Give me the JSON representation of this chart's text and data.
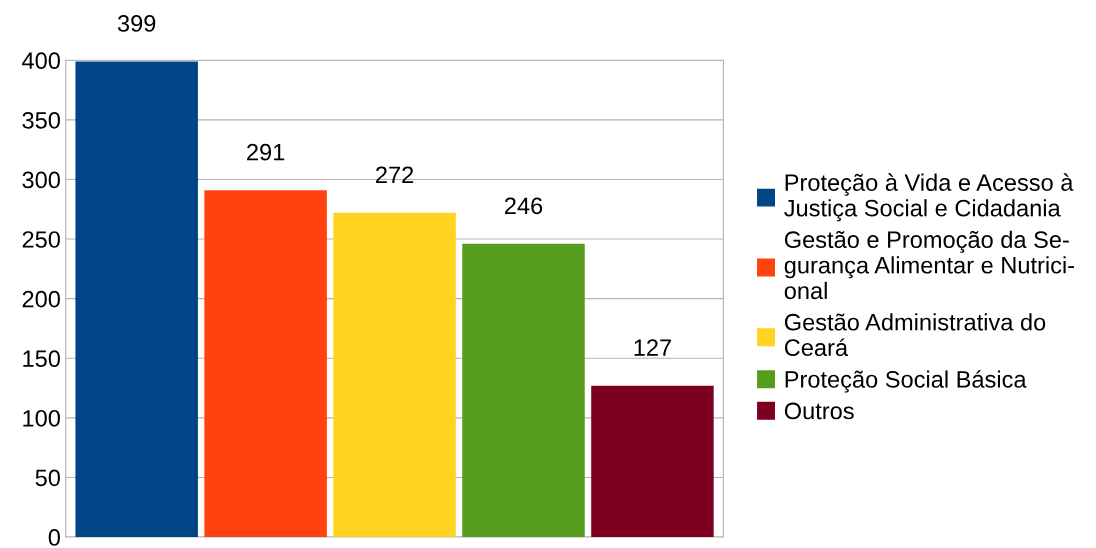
{
  "chart_data": {
    "type": "bar",
    "categories": [
      null,
      null,
      null,
      null,
      null
    ],
    "series": [
      {
        "name": "Proteção à Vida e Acesso à\nJustiça Social e Cidadania",
        "color": "#004586",
        "values": [
          399,
          null,
          null,
          null,
          null
        ]
      },
      {
        "name": "Gestão e Promoção da Se-\ngurança Alimentar e Nutrici-\nonal",
        "color": "#ff420e",
        "values": [
          null,
          291,
          null,
          null,
          null
        ]
      },
      {
        "name": "Gestão Administrativa do\nCeará",
        "color": "#ffd320",
        "values": [
          null,
          null,
          272,
          null,
          null
        ]
      },
      {
        "name": "Proteção Social Básica",
        "color": "#579d1c",
        "values": [
          null,
          null,
          null,
          246,
          null
        ]
      },
      {
        "name": "Outros",
        "color": "#7e0021",
        "values": [
          null,
          null,
          null,
          null,
          127
        ]
      }
    ],
    "ylim": [
      0,
      400
    ],
    "yticks": [
      0,
      50,
      100,
      150,
      200,
      250,
      300,
      350,
      400
    ],
    "grid": "y",
    "legend": "right",
    "data_labels": true
  }
}
